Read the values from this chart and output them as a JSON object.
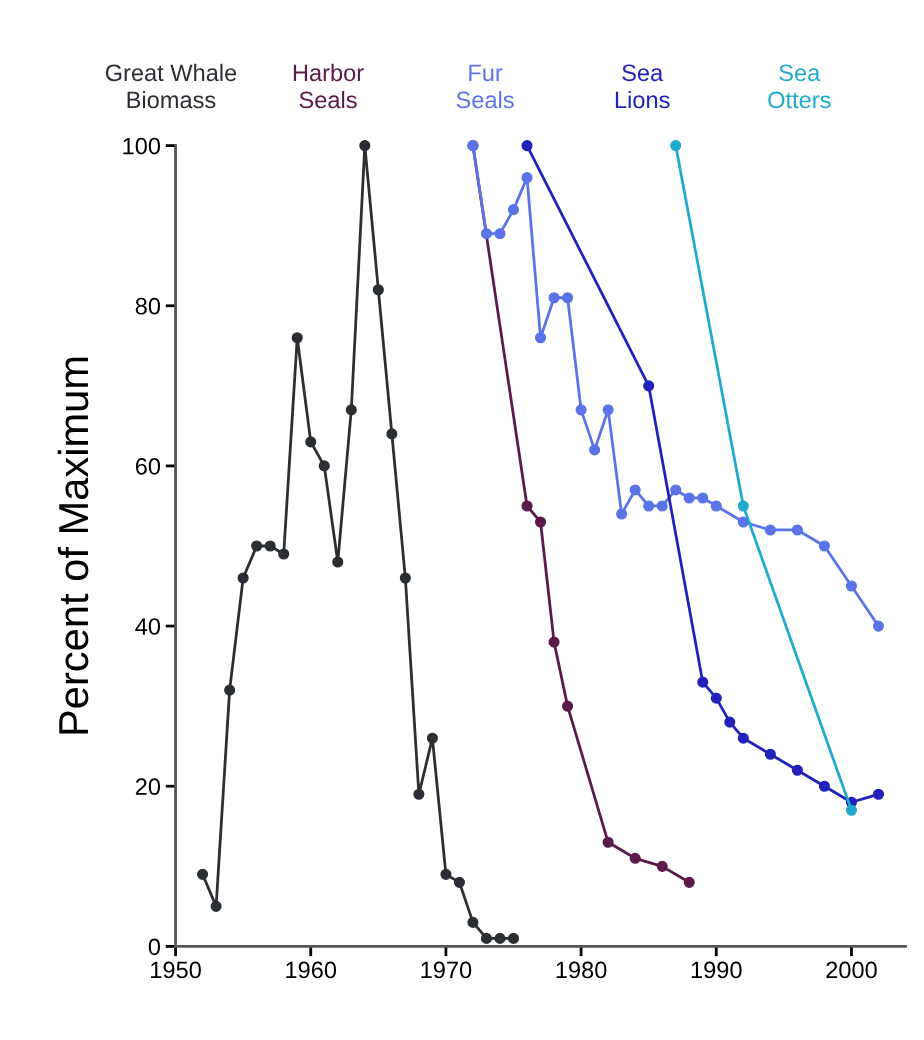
{
  "chart_data": {
    "type": "line",
    "ylabel": "Percent of Maximum",
    "xlim": [
      1950,
      2004
    ],
    "ylim": [
      0,
      100
    ],
    "xticks": [
      1950,
      1960,
      1970,
      1980,
      1990,
      2000
    ],
    "yticks": [
      0,
      20,
      40,
      60,
      80,
      100
    ],
    "grid": false,
    "legend": false,
    "marker": "circle",
    "line_style": "solid",
    "series": [
      {
        "name": "Great Whale\nBiomass",
        "color": "#2b2f33",
        "x": [
          1952,
          1953,
          1954,
          1955,
          1956,
          1957,
          1958,
          1959,
          1960,
          1961,
          1962,
          1963,
          1964,
          1965,
          1966,
          1967,
          1968,
          1969,
          1970,
          1971,
          1972,
          1973,
          1974,
          1975
        ],
        "values": [
          9,
          5,
          32,
          46,
          50,
          50,
          49,
          76,
          63,
          60,
          48,
          67,
          100,
          82,
          64,
          46,
          19,
          26,
          9,
          8,
          3,
          1,
          1,
          1
        ]
      },
      {
        "name": "Harbor\nSeals",
        "color": "#5a1a4a",
        "x": [
          1972,
          1976,
          1977,
          1978,
          1979,
          1982,
          1984,
          1986,
          1988
        ],
        "values": [
          100,
          55,
          53,
          38,
          30,
          13,
          11,
          10,
          8
        ]
      },
      {
        "name": "Fur\nSeals",
        "color": "#5a74e8",
        "x": [
          1972,
          1973,
          1974,
          1975,
          1976,
          1977,
          1978,
          1979,
          1980,
          1981,
          1982,
          1983,
          1984,
          1985,
          1986,
          1987,
          1988,
          1989,
          1990,
          1992,
          1994,
          1996,
          1998,
          2000,
          2002
        ],
        "values": [
          100,
          89,
          89,
          92,
          96,
          76,
          81,
          81,
          67,
          62,
          67,
          54,
          57,
          55,
          55,
          57,
          56,
          56,
          55,
          53,
          52,
          52,
          50,
          45,
          40
        ]
      },
      {
        "name": "Sea\nLions",
        "color": "#2222bb",
        "x": [
          1976,
          1985,
          1989,
          1990,
          1991,
          1992,
          1994,
          1996,
          1998,
          2000,
          2002
        ],
        "values": [
          100,
          70,
          33,
          31,
          28,
          26,
          24,
          22,
          20,
          18,
          19
        ]
      },
      {
        "name": "Sea\nOtters",
        "color": "#22aacc",
        "x": [
          1987,
          1992,
          2000
        ],
        "values": [
          100,
          55,
          17
        ]
      }
    ]
  }
}
